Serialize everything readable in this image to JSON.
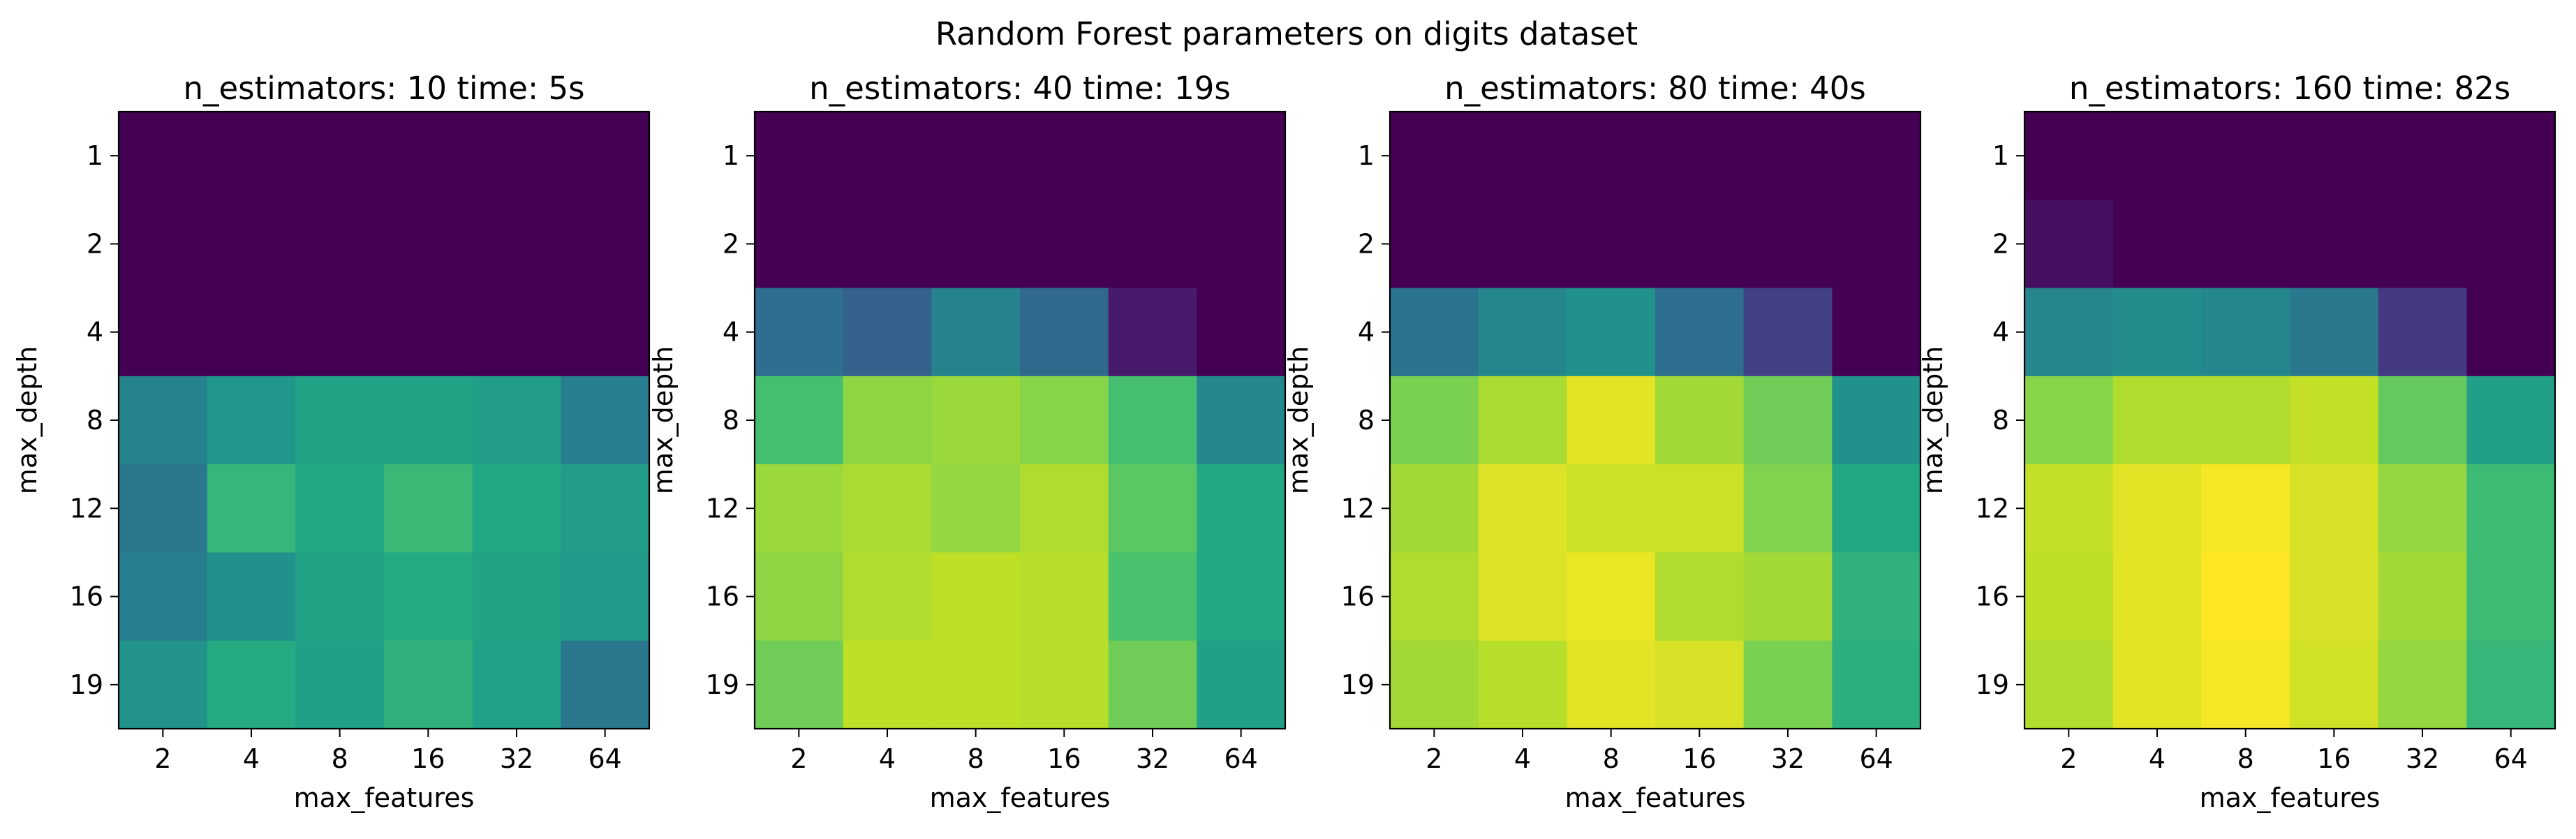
{
  "figure": {
    "suptitle": "Random Forest parameters on digits dataset"
  },
  "chart_data": [
    {
      "type": "heatmap",
      "title": "n_estimators: 10 time: 5s",
      "xlabel": "max_features",
      "ylabel": "max_depth",
      "x_categories": [
        "2",
        "4",
        "8",
        "16",
        "32",
        "64"
      ],
      "y_categories": [
        "1",
        "2",
        "4",
        "8",
        "12",
        "16",
        "19"
      ],
      "colormap": "viridis",
      "values": [
        [
          0.0,
          0.0,
          0.0,
          0.0,
          0.0,
          0.0
        ],
        [
          0.0,
          0.0,
          0.0,
          0.0,
          0.0,
          0.0
        ],
        [
          0.0,
          0.0,
          0.0,
          0.0,
          0.0,
          0.0
        ],
        [
          0.44,
          0.52,
          0.58,
          0.58,
          0.55,
          0.42
        ],
        [
          0.4,
          0.66,
          0.6,
          0.67,
          0.6,
          0.55
        ],
        [
          0.42,
          0.5,
          0.58,
          0.61,
          0.58,
          0.54
        ],
        [
          0.51,
          0.61,
          0.56,
          0.64,
          0.57,
          0.4
        ]
      ]
    },
    {
      "type": "heatmap",
      "title": "n_estimators: 40 time: 19s",
      "xlabel": "max_features",
      "ylabel": "max_depth",
      "x_categories": [
        "2",
        "4",
        "8",
        "16",
        "32",
        "64"
      ],
      "y_categories": [
        "1",
        "2",
        "4",
        "8",
        "12",
        "16",
        "19"
      ],
      "colormap": "viridis",
      "values": [
        [
          0.0,
          0.0,
          0.0,
          0.0,
          0.0,
          0.0
        ],
        [
          0.0,
          0.0,
          0.0,
          0.0,
          0.0,
          0.0
        ],
        [
          0.36,
          0.31,
          0.44,
          0.34,
          0.07,
          0.0
        ],
        [
          0.7,
          0.83,
          0.85,
          0.82,
          0.7,
          0.46
        ],
        [
          0.85,
          0.87,
          0.84,
          0.88,
          0.74,
          0.6
        ],
        [
          0.83,
          0.88,
          0.9,
          0.89,
          0.71,
          0.6
        ],
        [
          0.78,
          0.9,
          0.9,
          0.89,
          0.78,
          0.56
        ]
      ]
    },
    {
      "type": "heatmap",
      "title": "n_estimators: 80 time: 40s",
      "xlabel": "max_features",
      "ylabel": "max_depth",
      "x_categories": [
        "2",
        "4",
        "8",
        "16",
        "32",
        "64"
      ],
      "y_categories": [
        "1",
        "2",
        "4",
        "8",
        "12",
        "16",
        "19"
      ],
      "colormap": "viridis",
      "values": [
        [
          0.0,
          0.0,
          0.0,
          0.0,
          0.0,
          0.0
        ],
        [
          0.0,
          0.0,
          0.0,
          0.0,
          0.0,
          0.0
        ],
        [
          0.38,
          0.46,
          0.5,
          0.36,
          0.19,
          0.0
        ],
        [
          0.8,
          0.87,
          0.96,
          0.86,
          0.78,
          0.5
        ],
        [
          0.86,
          0.95,
          0.92,
          0.92,
          0.81,
          0.6
        ],
        [
          0.88,
          0.95,
          0.97,
          0.88,
          0.86,
          0.64
        ],
        [
          0.86,
          0.89,
          0.96,
          0.94,
          0.8,
          0.63
        ]
      ]
    },
    {
      "type": "heatmap",
      "title": "n_estimators: 160 time: 82s",
      "xlabel": "max_features",
      "ylabel": "max_depth",
      "x_categories": [
        "2",
        "4",
        "8",
        "16",
        "32",
        "64"
      ],
      "y_categories": [
        "1",
        "2",
        "4",
        "8",
        "12",
        "16",
        "19"
      ],
      "colormap": "viridis",
      "values": [
        [
          0.0,
          0.0,
          0.0,
          0.0,
          0.0,
          0.0
        ],
        [
          0.04,
          0.0,
          0.0,
          0.0,
          0.0,
          0.0
        ],
        [
          0.45,
          0.48,
          0.46,
          0.4,
          0.17,
          0.0
        ],
        [
          0.82,
          0.88,
          0.88,
          0.91,
          0.76,
          0.56
        ],
        [
          0.91,
          0.96,
          0.99,
          0.94,
          0.84,
          0.68
        ],
        [
          0.9,
          0.96,
          1.0,
          0.94,
          0.86,
          0.68
        ],
        [
          0.88,
          0.96,
          0.99,
          0.93,
          0.84,
          0.66
        ]
      ]
    }
  ]
}
